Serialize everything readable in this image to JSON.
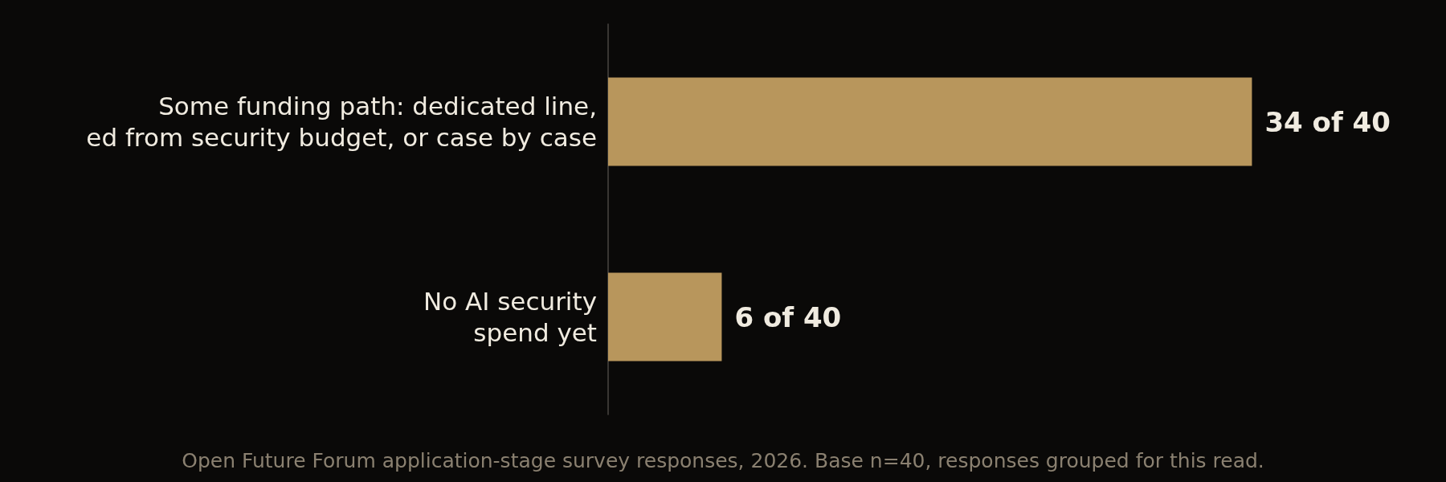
{
  "chart_data": {
    "type": "bar",
    "orientation": "horizontal",
    "categories": [
      "Some funding path: dedicated line,\ned from security budget, or case by case",
      "No AI security\nspend yet"
    ],
    "values": [
      34,
      6
    ],
    "value_labels": [
      "34 of 40",
      "6 of 40"
    ],
    "color": "#b8965c",
    "annotations": [
      "Open Future Forum application-stage survey responses, 2026. Base n=40, responses grouped for this read."
    ]
  }
}
